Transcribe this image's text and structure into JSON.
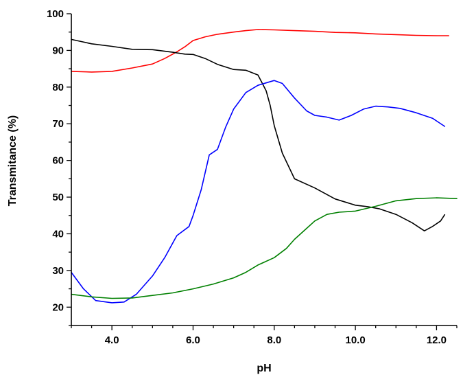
{
  "chart_data": {
    "type": "line",
    "xlabel": "pH",
    "ylabel": "Transmitance (%)",
    "xlim": [
      3.0,
      12.5
    ],
    "ylim": [
      15,
      100
    ],
    "x_ticks": [
      "4.0",
      "6.0",
      "8.0",
      "10.0",
      "12.0"
    ],
    "x_tick_values": [
      4,
      6,
      8,
      10,
      12
    ],
    "y_ticks": [
      "20",
      "30",
      "40",
      "50",
      "60",
      "70",
      "80",
      "90",
      "100"
    ],
    "y_tick_values": [
      20,
      30,
      40,
      50,
      60,
      70,
      80,
      90,
      100
    ],
    "grid": false,
    "legend": "none",
    "series": [
      {
        "color": "#ff0000",
        "x": [
          3.0,
          3.5,
          4.0,
          4.5,
          5.0,
          5.3,
          5.6,
          5.8,
          6.0,
          6.3,
          6.6,
          7.0,
          7.3,
          7.6,
          8.0,
          8.5,
          9.0,
          9.5,
          10.0,
          10.5,
          11.0,
          11.5,
          12.0,
          12.3
        ],
        "y": [
          84.3,
          84.1,
          84.3,
          85.2,
          86.3,
          87.8,
          89.6,
          91.0,
          92.7,
          93.7,
          94.4,
          95.0,
          95.4,
          95.7,
          95.6,
          95.4,
          95.2,
          94.9,
          94.8,
          94.5,
          94.3,
          94.1,
          94.0,
          94.0
        ]
      },
      {
        "color": "#000000",
        "x": [
          3.0,
          3.5,
          4.0,
          4.5,
          5.0,
          5.5,
          5.8,
          6.0,
          6.3,
          6.6,
          7.0,
          7.3,
          7.6,
          7.8,
          7.9,
          8.0,
          8.2,
          8.5,
          9.0,
          9.5,
          10.0,
          10.3,
          10.6,
          11.0,
          11.4,
          11.7,
          11.9,
          12.1,
          12.2
        ],
        "y": [
          93.0,
          91.8,
          91.1,
          90.3,
          90.2,
          89.5,
          89.0,
          88.9,
          87.8,
          86.2,
          84.8,
          84.6,
          83.3,
          79.0,
          75.0,
          69.5,
          62.0,
          55.0,
          52.5,
          49.5,
          47.8,
          47.4,
          46.8,
          45.3,
          43.0,
          40.8,
          42.0,
          43.5,
          45.2
        ]
      },
      {
        "color": "#0000ff",
        "x": [
          3.0,
          3.3,
          3.6,
          4.0,
          4.3,
          4.6,
          5.0,
          5.3,
          5.6,
          5.9,
          6.0,
          6.2,
          6.4,
          6.6,
          6.8,
          7.0,
          7.3,
          7.6,
          8.0,
          8.2,
          8.5,
          8.8,
          9.0,
          9.3,
          9.6,
          9.9,
          10.2,
          10.5,
          10.8,
          11.1,
          11.5,
          11.9,
          12.2
        ],
        "y": [
          29.5,
          25.0,
          21.8,
          21.2,
          21.4,
          23.5,
          28.5,
          33.5,
          39.5,
          42.0,
          45.0,
          52.0,
          61.5,
          63.0,
          69.0,
          74.0,
          78.5,
          80.5,
          81.8,
          81.0,
          77.0,
          73.5,
          72.3,
          71.8,
          71.0,
          72.3,
          74.0,
          74.8,
          74.6,
          74.2,
          73.0,
          71.5,
          69.3
        ]
      },
      {
        "color": "#008000",
        "x": [
          3.0,
          3.5,
          4.0,
          4.5,
          5.0,
          5.5,
          6.0,
          6.5,
          7.0,
          7.3,
          7.6,
          8.0,
          8.3,
          8.5,
          8.8,
          9.0,
          9.3,
          9.6,
          10.0,
          10.5,
          11.0,
          11.5,
          12.0,
          12.5
        ],
        "y": [
          23.5,
          22.8,
          22.4,
          22.5,
          23.2,
          23.9,
          25.0,
          26.3,
          28.0,
          29.5,
          31.5,
          33.5,
          36.0,
          38.5,
          41.5,
          43.5,
          45.3,
          45.9,
          46.2,
          47.5,
          49.0,
          49.6,
          49.8,
          49.6
        ]
      }
    ]
  }
}
